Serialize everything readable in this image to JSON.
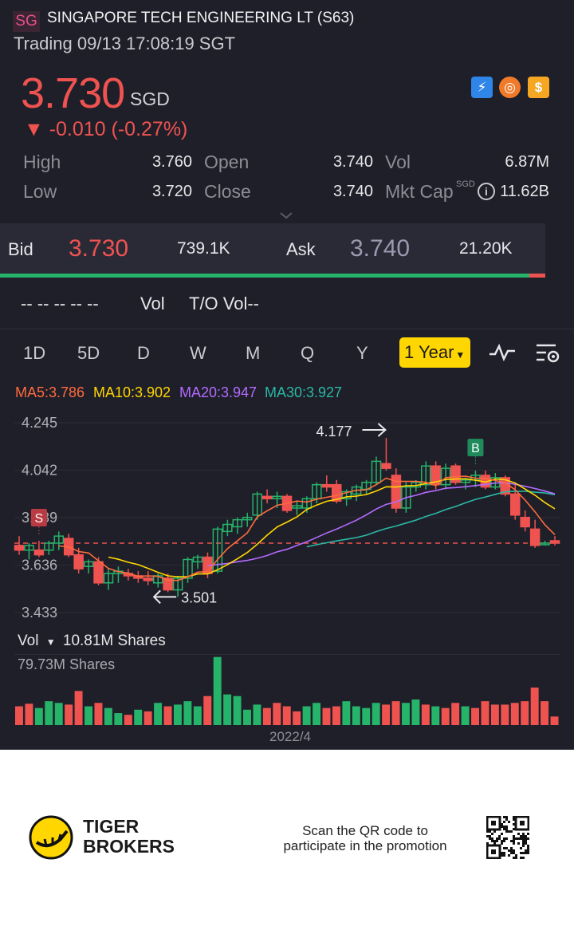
{
  "header": {
    "exchange_badge": "SG",
    "title": "SINGAPORE TECH ENGINEERING LT (S63)",
    "status": "Trading 09/13 17:08:19 SGT",
    "price": "3.730",
    "currency": "SGD",
    "change": "▼ -0.010 (-0.27%)",
    "icons": [
      "lightning-badge-icon",
      "orange-coin-icon",
      "dollar-badge-icon"
    ]
  },
  "stats": {
    "high_label": "High",
    "high": "3.760",
    "low_label": "Low",
    "low": "3.720",
    "open_label": "Open",
    "open": "3.740",
    "close_label": "Close",
    "close": "3.740",
    "vol_label": "Vol",
    "vol": "6.87M",
    "mktcap_label": "Mkt Cap",
    "mktcap_sup": "SGD",
    "mktcap": "11.62B"
  },
  "quote": {
    "bid_label": "Bid",
    "bid_price": "3.730",
    "bid_size": "739.1K",
    "ask_label": "Ask",
    "ask_price": "3.740",
    "ask_size": "21.20K",
    "bid_ratio": 0.97
  },
  "volrow": {
    "dashes": "-- -- -- -- --",
    "vol_label": "Vol",
    "to_vol": "T/O Vol--"
  },
  "tabs": [
    "1D",
    "5D",
    "D",
    "W",
    "M",
    "Q",
    "Y"
  ],
  "active_tab": "1 Year",
  "ma": {
    "ma5": "MA5:3.786",
    "ma10": "MA10:3.902",
    "ma20": "MA20:3.947",
    "ma30": "MA30:3.927"
  },
  "colors": {
    "up": "#26b36a",
    "down": "#ef5350",
    "ma5": "#ff6b3d",
    "ma10": "#ffd600",
    "ma20": "#b36bff",
    "ma30": "#2bb8a6",
    "accent": "#ffd600"
  },
  "chart_data": {
    "type": "candlestick",
    "y_ticks": [
      "4.245",
      "4.042",
      "3.839",
      "3.636",
      "3.433"
    ],
    "ylim": [
      3.433,
      4.245
    ],
    "high_annotation": "4.177",
    "low_annotation": "3.501",
    "signal_sell": "S",
    "signal_buy": "B",
    "reference_price": 3.73,
    "candles": [
      {
        "o": 3.72,
        "h": 3.76,
        "l": 3.68,
        "c": 3.7
      },
      {
        "o": 3.7,
        "h": 3.73,
        "l": 3.66,
        "c": 3.72
      },
      {
        "o": 3.7,
        "h": 3.74,
        "l": 3.67,
        "c": 3.68
      },
      {
        "o": 3.7,
        "h": 3.74,
        "l": 3.68,
        "c": 3.73
      },
      {
        "o": 3.73,
        "h": 3.78,
        "l": 3.7,
        "c": 3.76
      },
      {
        "o": 3.75,
        "h": 3.77,
        "l": 3.67,
        "c": 3.68
      },
      {
        "o": 3.68,
        "h": 3.71,
        "l": 3.6,
        "c": 3.62
      },
      {
        "o": 3.63,
        "h": 3.66,
        "l": 3.6,
        "c": 3.65
      },
      {
        "o": 3.65,
        "h": 3.67,
        "l": 3.55,
        "c": 3.56
      },
      {
        "o": 3.56,
        "h": 3.62,
        "l": 3.53,
        "c": 3.6
      },
      {
        "o": 3.6,
        "h": 3.63,
        "l": 3.56,
        "c": 3.61
      },
      {
        "o": 3.6,
        "h": 3.62,
        "l": 3.57,
        "c": 3.59
      },
      {
        "o": 3.59,
        "h": 3.61,
        "l": 3.56,
        "c": 3.58
      },
      {
        "o": 3.58,
        "h": 3.61,
        "l": 3.55,
        "c": 3.57
      },
      {
        "o": 3.56,
        "h": 3.6,
        "l": 3.54,
        "c": 3.59
      },
      {
        "o": 3.58,
        "h": 3.6,
        "l": 3.52,
        "c": 3.53
      },
      {
        "o": 3.53,
        "h": 3.59,
        "l": 3.5,
        "c": 3.58
      },
      {
        "o": 3.58,
        "h": 3.67,
        "l": 3.56,
        "c": 3.66
      },
      {
        "o": 3.65,
        "h": 3.68,
        "l": 3.62,
        "c": 3.67
      },
      {
        "o": 3.67,
        "h": 3.69,
        "l": 3.58,
        "c": 3.6
      },
      {
        "o": 3.61,
        "h": 3.8,
        "l": 3.6,
        "c": 3.79
      },
      {
        "o": 3.78,
        "h": 3.83,
        "l": 3.76,
        "c": 3.81
      },
      {
        "o": 3.8,
        "h": 3.84,
        "l": 3.77,
        "c": 3.83
      },
      {
        "o": 3.83,
        "h": 3.86,
        "l": 3.8,
        "c": 3.84
      },
      {
        "o": 3.85,
        "h": 3.95,
        "l": 3.83,
        "c": 3.94
      },
      {
        "o": 3.93,
        "h": 3.96,
        "l": 3.9,
        "c": 3.92
      },
      {
        "o": 3.92,
        "h": 3.95,
        "l": 3.88,
        "c": 3.93
      },
      {
        "o": 3.93,
        "h": 3.94,
        "l": 3.86,
        "c": 3.87
      },
      {
        "o": 3.88,
        "h": 3.91,
        "l": 3.85,
        "c": 3.89
      },
      {
        "o": 3.88,
        "h": 3.93,
        "l": 3.86,
        "c": 3.92
      },
      {
        "o": 3.92,
        "h": 3.99,
        "l": 3.9,
        "c": 3.98
      },
      {
        "o": 3.98,
        "h": 4.02,
        "l": 3.95,
        "c": 3.97
      },
      {
        "o": 3.98,
        "h": 4.0,
        "l": 3.9,
        "c": 3.91
      },
      {
        "o": 3.92,
        "h": 3.96,
        "l": 3.89,
        "c": 3.95
      },
      {
        "o": 3.94,
        "h": 3.98,
        "l": 3.91,
        "c": 3.97
      },
      {
        "o": 3.96,
        "h": 4.0,
        "l": 3.94,
        "c": 3.99
      },
      {
        "o": 3.99,
        "h": 4.1,
        "l": 3.98,
        "c": 4.08
      },
      {
        "o": 4.07,
        "h": 4.18,
        "l": 4.04,
        "c": 4.05
      },
      {
        "o": 4.02,
        "h": 4.05,
        "l": 3.86,
        "c": 3.88
      },
      {
        "o": 3.88,
        "h": 3.99,
        "l": 3.86,
        "c": 3.97
      },
      {
        "o": 3.97,
        "h": 4.0,
        "l": 3.95,
        "c": 3.99
      },
      {
        "o": 3.98,
        "h": 4.08,
        "l": 3.96,
        "c": 4.06
      },
      {
        "o": 4.06,
        "h": 4.08,
        "l": 3.96,
        "c": 3.98
      },
      {
        "o": 3.98,
        "h": 4.07,
        "l": 3.96,
        "c": 4.05
      },
      {
        "o": 4.06,
        "h": 4.07,
        "l": 3.98,
        "c": 3.99
      },
      {
        "o": 3.99,
        "h": 4.01,
        "l": 3.96,
        "c": 4.0
      },
      {
        "o": 4.0,
        "h": 4.04,
        "l": 3.97,
        "c": 4.02
      },
      {
        "o": 4.02,
        "h": 4.04,
        "l": 3.96,
        "c": 3.97
      },
      {
        "o": 3.97,
        "h": 4.03,
        "l": 3.96,
        "c": 4.01
      },
      {
        "o": 4.01,
        "h": 4.02,
        "l": 3.93,
        "c": 3.94
      },
      {
        "o": 3.94,
        "h": 3.98,
        "l": 3.83,
        "c": 3.85
      },
      {
        "o": 3.84,
        "h": 3.87,
        "l": 3.78,
        "c": 3.8
      },
      {
        "o": 3.79,
        "h": 3.83,
        "l": 3.71,
        "c": 3.72
      },
      {
        "o": 3.73,
        "h": 3.74,
        "l": 3.72,
        "c": 3.73
      },
      {
        "o": 3.74,
        "h": 3.76,
        "l": 3.72,
        "c": 3.73
      }
    ]
  },
  "volume": {
    "label": "Vol",
    "total": "10.81M Shares",
    "max_label": "79.73M Shares",
    "date_label": "2022/4",
    "max": 79.73,
    "bars": [
      {
        "v": 22,
        "up": false
      },
      {
        "v": 25,
        "up": false
      },
      {
        "v": 20,
        "up": true
      },
      {
        "v": 28,
        "up": true
      },
      {
        "v": 26,
        "up": true
      },
      {
        "v": 24,
        "up": false
      },
      {
        "v": 40,
        "up": false
      },
      {
        "v": 22,
        "up": true
      },
      {
        "v": 26,
        "up": false
      },
      {
        "v": 20,
        "up": true
      },
      {
        "v": 14,
        "up": true
      },
      {
        "v": 12,
        "up": false
      },
      {
        "v": 18,
        "up": true
      },
      {
        "v": 16,
        "up": false
      },
      {
        "v": 26,
        "up": true
      },
      {
        "v": 22,
        "up": false
      },
      {
        "v": 24,
        "up": true
      },
      {
        "v": 28,
        "up": true
      },
      {
        "v": 22,
        "up": true
      },
      {
        "v": 34,
        "up": false
      },
      {
        "v": 80,
        "up": true
      },
      {
        "v": 36,
        "up": true
      },
      {
        "v": 34,
        "up": true
      },
      {
        "v": 18,
        "up": true
      },
      {
        "v": 24,
        "up": true
      },
      {
        "v": 20,
        "up": false
      },
      {
        "v": 26,
        "up": false
      },
      {
        "v": 22,
        "up": false
      },
      {
        "v": 16,
        "up": false
      },
      {
        "v": 22,
        "up": true
      },
      {
        "v": 26,
        "up": true
      },
      {
        "v": 20,
        "up": false
      },
      {
        "v": 22,
        "up": false
      },
      {
        "v": 28,
        "up": true
      },
      {
        "v": 22,
        "up": true
      },
      {
        "v": 20,
        "up": true
      },
      {
        "v": 26,
        "up": true
      },
      {
        "v": 24,
        "up": false
      },
      {
        "v": 28,
        "up": false
      },
      {
        "v": 26,
        "up": true
      },
      {
        "v": 30,
        "up": true
      },
      {
        "v": 24,
        "up": false
      },
      {
        "v": 22,
        "up": true
      },
      {
        "v": 20,
        "up": false
      },
      {
        "v": 26,
        "up": false
      },
      {
        "v": 22,
        "up": true
      },
      {
        "v": 20,
        "up": false
      },
      {
        "v": 28,
        "up": false
      },
      {
        "v": 24,
        "up": false
      },
      {
        "v": 24,
        "up": false
      },
      {
        "v": 26,
        "up": false
      },
      {
        "v": 28,
        "up": false
      },
      {
        "v": 44,
        "up": false
      },
      {
        "v": 28,
        "up": false
      },
      {
        "v": 10,
        "up": false
      }
    ]
  },
  "footer": {
    "brand_line1": "TIGER",
    "brand_line2": "BROKERS",
    "promo": "Scan the QR code to participate in the promotion"
  }
}
